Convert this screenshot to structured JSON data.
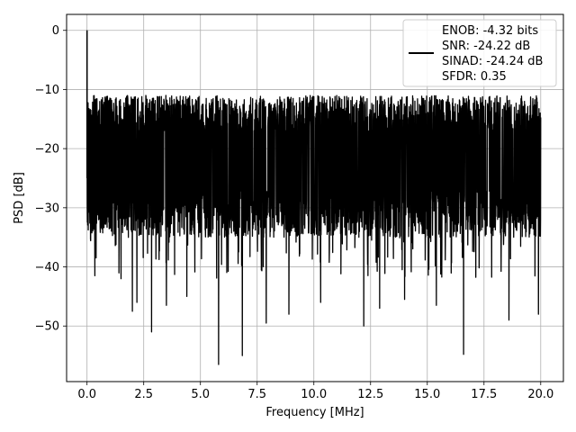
{
  "chart_data": {
    "type": "line",
    "xlabel": "Frequency [MHz]",
    "ylabel": "PSD [dB]",
    "xlim": [
      -0.9,
      21.0
    ],
    "ylim": [
      -59.4,
      2.7
    ],
    "xticks": [
      0.0,
      2.5,
      5.0,
      7.5,
      10.0,
      12.5,
      15.0,
      17.5,
      20.0
    ],
    "xtick_labels": [
      "0.0",
      "2.5",
      "5.0",
      "7.5",
      "10.0",
      "12.5",
      "15.0",
      "17.5",
      "20.0"
    ],
    "yticks": [
      0,
      -10,
      -20,
      -30,
      -40,
      -50
    ],
    "ytick_labels": [
      "0",
      "−10",
      "−20",
      "−30",
      "−40",
      "−50"
    ],
    "grid": true,
    "legend_position": "top-right",
    "series": [
      {
        "name": "ENOB: -4.32 bits\nSNR: -24.22 dB\nSINAD: -24.24 dB\nSFDR: 0.35",
        "color": "#000000",
        "description_of_shape": "dense noise trace",
        "x_range": [
          0.0,
          20.0
        ],
        "peak": {
          "x": 0.0,
          "y": 0.0
        },
        "noise_band_top": -11,
        "noise_band_bottom": -33,
        "notable_dips": [
          {
            "x": 0.35,
            "y": -41.5
          },
          {
            "x": 1.5,
            "y": -42.0
          },
          {
            "x": 2.0,
            "y": -47.5
          },
          {
            "x": 2.2,
            "y": -46.0
          },
          {
            "x": 2.85,
            "y": -51.0
          },
          {
            "x": 3.5,
            "y": -46.5
          },
          {
            "x": 4.4,
            "y": -45.0
          },
          {
            "x": 5.8,
            "y": -56.5
          },
          {
            "x": 6.85,
            "y": -55.0
          },
          {
            "x": 7.9,
            "y": -49.5
          },
          {
            "x": 8.9,
            "y": -48.0
          },
          {
            "x": 10.3,
            "y": -46.0
          },
          {
            "x": 12.2,
            "y": -50.0
          },
          {
            "x": 12.9,
            "y": -47.0
          },
          {
            "x": 14.0,
            "y": -45.5
          },
          {
            "x": 15.4,
            "y": -46.5
          },
          {
            "x": 16.6,
            "y": -54.8
          },
          {
            "x": 18.6,
            "y": -49.0
          },
          {
            "x": 19.9,
            "y": -48.0
          }
        ]
      }
    ]
  }
}
